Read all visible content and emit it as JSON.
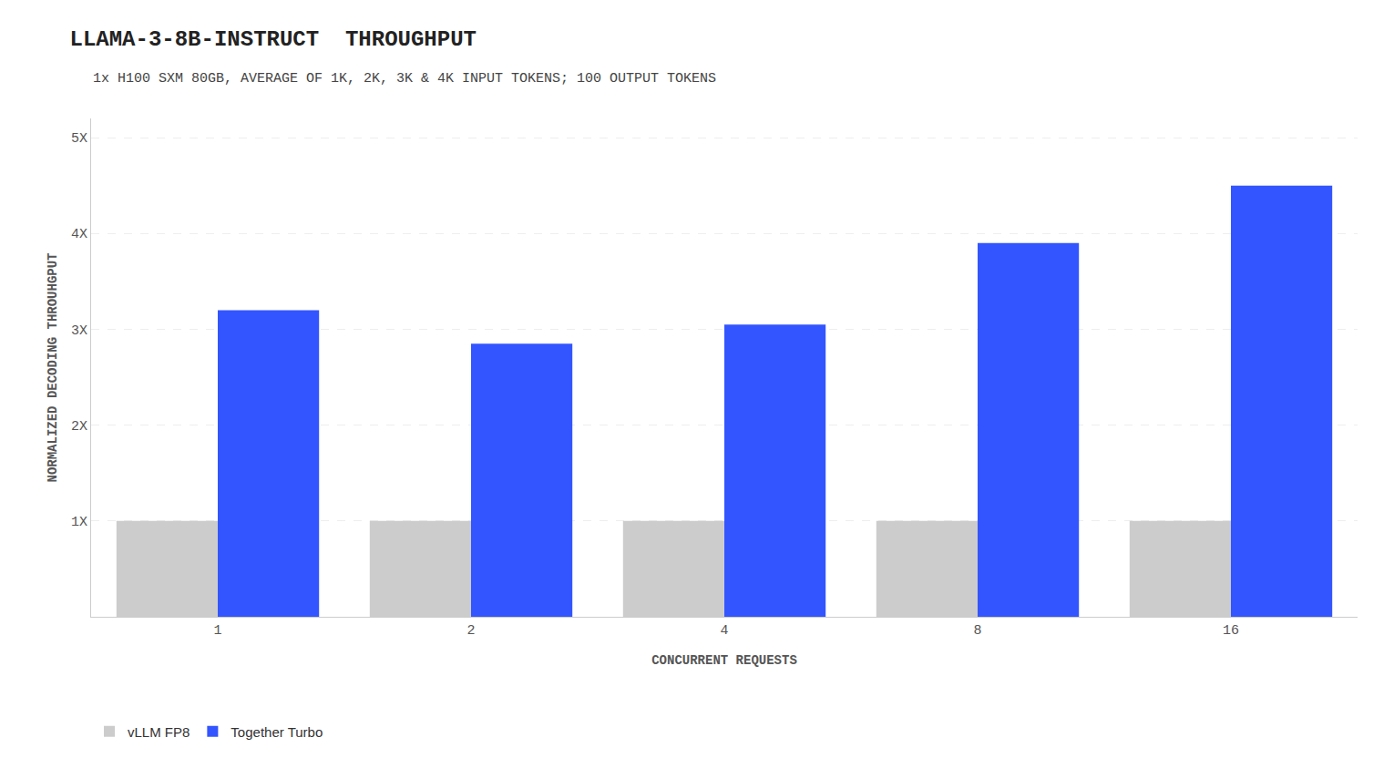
{
  "chart_data": {
    "type": "bar",
    "title": "LLAMA-3-8B-INSTRUCT  THROUGHPUT",
    "subtitle": "1x H100 SXM 80GB, AVERAGE OF 1K, 2K, 3K & 4K INPUT TOKENS; 100 OUTPUT TOKENS",
    "x_label": "CONCURRENT REQUESTS",
    "y_label": "NORMALIZED DECODING THROUHGPUT",
    "categories": [
      "1",
      "2",
      "4",
      "8",
      "16"
    ],
    "series": [
      {
        "name": "vLLM FP8",
        "color": "#cccccc",
        "values": [
          1.0,
          1.0,
          1.0,
          1.0,
          1.0
        ]
      },
      {
        "name": "Together Turbo",
        "color": "#3355ff",
        "values": [
          3.2,
          2.85,
          3.05,
          3.9,
          4.5
        ]
      }
    ],
    "ylim": [
      0,
      5.2
    ],
    "yticks": [
      {
        "value": 1,
        "label": "1X"
      },
      {
        "value": 2,
        "label": "2X"
      },
      {
        "value": 3,
        "label": "3X"
      },
      {
        "value": 4,
        "label": "4X"
      },
      {
        "value": 5,
        "label": "5X"
      }
    ],
    "grid": true,
    "legend": "lower left"
  }
}
